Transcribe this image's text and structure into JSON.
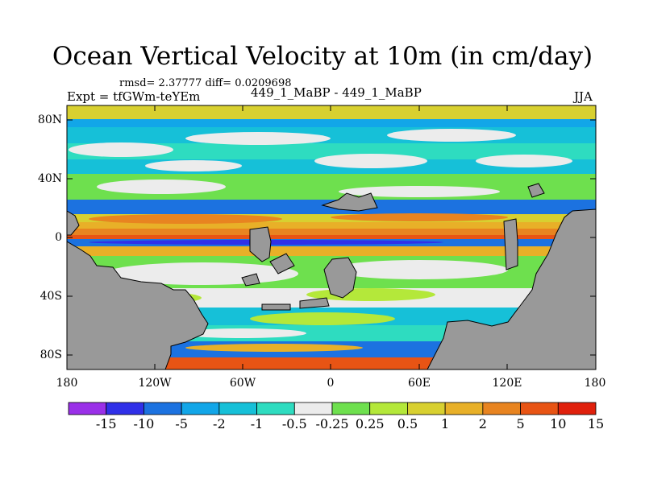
{
  "title": "Ocean Vertical Velocity at 10m (in cm/day)",
  "stats": {
    "text": "rmsd= 2.37777 diff= 0.0209698"
  },
  "expt": {
    "text": "Expt = tfGWm-teYEm"
  },
  "center_label": "449_1_MaBP - 449_1_MaBP",
  "season": "JJA",
  "lat_labels": [
    "80N",
    "40N",
    "0",
    "40S",
    "80S"
  ],
  "lon_labels": [
    "180",
    "120W",
    "60W",
    "0",
    "60E",
    "120E",
    "180"
  ],
  "colorbar": {
    "labels": [
      "-15",
      "-10",
      "-5",
      "-2",
      "-1",
      "-0.5",
      "-0.25",
      "0.25",
      "0.5",
      "1",
      "2",
      "5",
      "10",
      "15"
    ],
    "colors": [
      "#9a30e8",
      "#3030e8",
      "#1c72e0",
      "#12a6e8",
      "#16c0d8",
      "#2edcc0",
      "#ececec",
      "#6ee04e",
      "#b4e83a",
      "#d8d030",
      "#e8b028",
      "#e88420",
      "#e85414",
      "#e0200c"
    ]
  },
  "map": {
    "land_color": "#999999"
  }
}
